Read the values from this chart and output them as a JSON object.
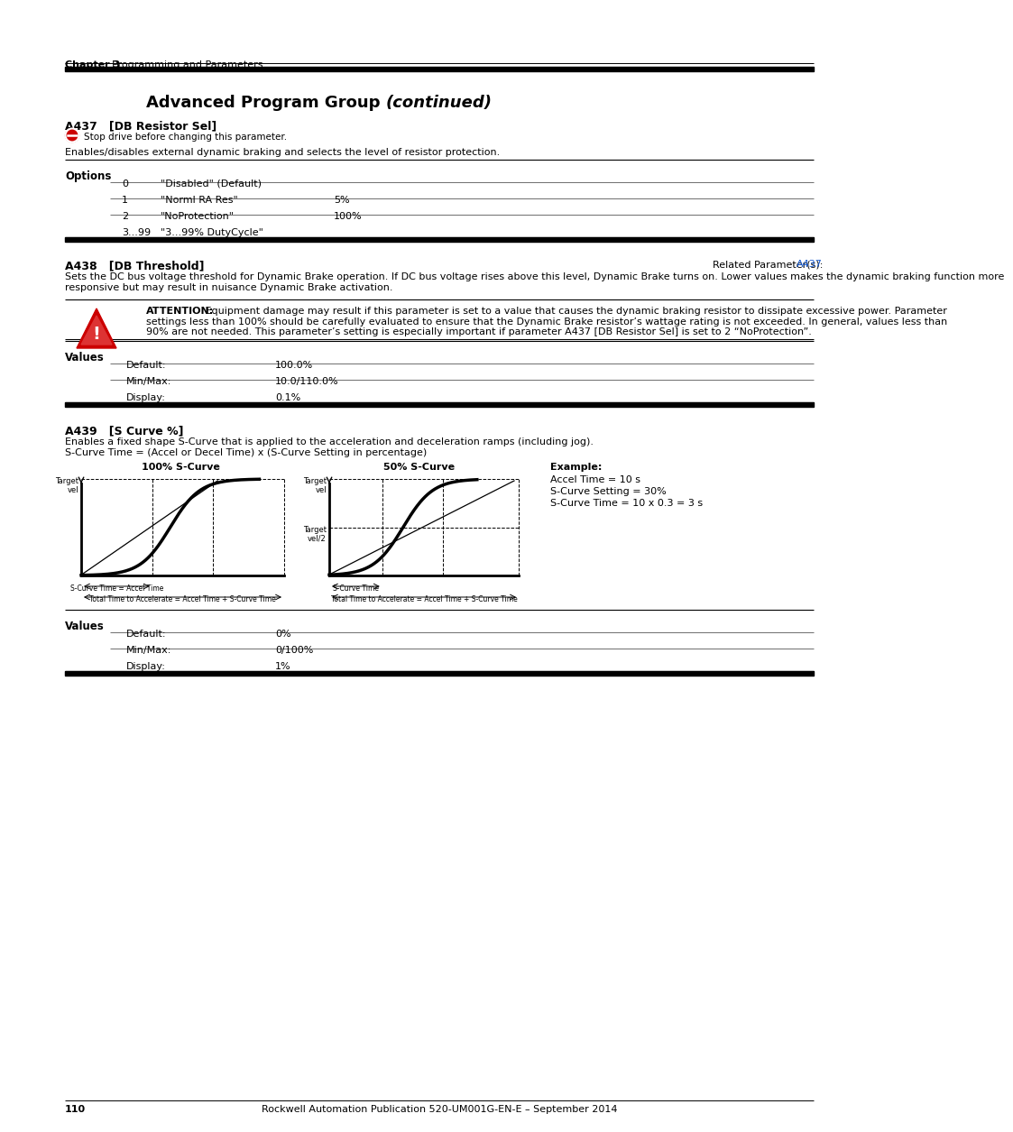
{
  "page_title_bold": "Advanced Program Group ",
  "page_title_italic": "(continued)",
  "header_chapter": "Chapter 3",
  "header_section": "    Programming and Parameters",
  "footer_text": "Rockwell Automation Publication 520-UM001G-EN-E – September 2014",
  "footer_page": "110",
  "a437_title": "A437   [DB Resistor Sel]",
  "a437_stop": "Stop drive before changing this parameter.",
  "a437_desc": "Enables/disables external dynamic braking and selects the level of resistor protection.",
  "a437_options": [
    {
      "num": "0",
      "name": "\"Disabled\" (Default)",
      "value": ""
    },
    {
      "num": "1",
      "name": "\"Norml RA Res\"",
      "value": "5%"
    },
    {
      "num": "2",
      "name": "\"NoProtection\"",
      "value": "100%"
    },
    {
      "num": "3...99",
      "name": "\"3...99% DutyCycle\"",
      "value": ""
    }
  ],
  "a438_title": "A438   [DB Threshold]",
  "a438_related_plain": "Related Parameter(s): ",
  "a438_related_link": "A437",
  "a438_desc": "Sets the DC bus voltage threshold for Dynamic Brake operation. If DC bus voltage rises above this level, Dynamic Brake turns on. Lower values makes the dynamic braking function more\nresponsive but may result in nuisance Dynamic Brake activation.",
  "a438_attn_bold": "ATTENTION:",
  "a438_attn_line1": " Equipment damage may result if this parameter is set to a value that causes the dynamic braking resistor to dissipate excessive power. Parameter",
  "a438_attn_line2": "settings less than 100% should be carefully evaluated to ensure that the Dynamic Brake resistor’s wattage rating is not exceeded. In general, values less than",
  "a438_attn_line3": "90% are not needed. This parameter’s setting is especially important if parameter A437 [DB Resistor Sel] is set to 2 “NoProtection”.",
  "a438_values": [
    {
      "label": "Default:",
      "value": "100.0%"
    },
    {
      "label": "Min/Max:",
      "value": "10.0/110.0%"
    },
    {
      "label": "Display:",
      "value": "0.1%"
    }
  ],
  "a439_title": "A439   [S Curve %]",
  "a439_desc1": "Enables a fixed shape S-Curve that is applied to the acceleration and deceleration ramps (including jog).",
  "a439_desc2": "S-Curve Time = (Accel or Decel Time) x (S-Curve Setting in percentage)",
  "a439_curve1_title": "100% S-Curve",
  "a439_curve2_title": "50% S-Curve",
  "a439_example_title": "Example:",
  "a439_example_lines": [
    "Accel Time = 10 s",
    "S-Curve Setting = 30%",
    "S-Curve Time = 10 x 0.3 = 3 s"
  ],
  "a439_annot1a": "S-Curve Time = Accel Time",
  "a439_annot1b": "Total Time to Accelerate = Accel Time + S-Curve Time",
  "a439_annot2a": "S-Curve Time",
  "a439_annot2b": "Total Time to Accelerate = Accel Time + S-Curve Time",
  "a439_values": [
    {
      "label": "Default:",
      "value": "0%"
    },
    {
      "label": "Min/Max:",
      "value": "0/100%"
    },
    {
      "label": "Display:",
      "value": "1%"
    }
  ]
}
